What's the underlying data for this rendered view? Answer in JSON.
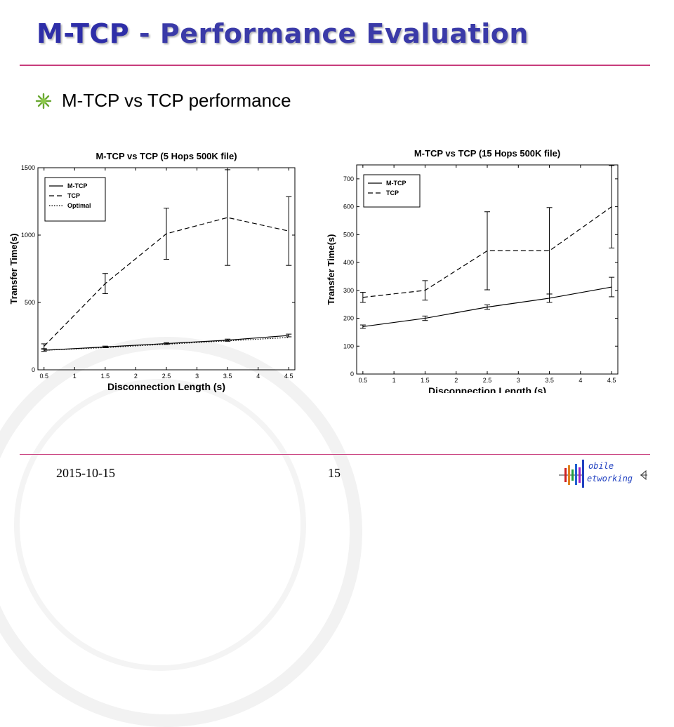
{
  "slide": {
    "title_part1": "M-TCP",
    "title_part2": " - Performance Evaluation",
    "bullet": "M-TCP vs TCP performance",
    "footer_date": "2015-10-15",
    "footer_page": "15",
    "logo_top": "obile",
    "logo_bottom": "etworking",
    "colors": {
      "title": "#2e2ea8",
      "rule": "#c83c7c",
      "bullet": "#6aa832",
      "logo": "#2040c0"
    },
    "icons": [
      "bullet-burst-icon",
      "mobile-networking-logo-icon"
    ]
  },
  "chart_data": [
    {
      "type": "line",
      "title": "M-TCP vs TCP (5 Hops 500K file)",
      "xlabel": "Disconnection Length (s)",
      "ylabel": "Transfer Time(s)",
      "xlim": [
        0.4,
        4.6
      ],
      "ylim": [
        0,
        1500
      ],
      "xticks": [
        0.5,
        1,
        1.5,
        2,
        2.5,
        3,
        3.5,
        4,
        4.5
      ],
      "xtick_labels": [
        "0.5",
        "1",
        "1.5",
        "2",
        "2.5",
        "3",
        "3.5",
        "4",
        "4.5"
      ],
      "yticks": [
        0,
        500,
        1000,
        1500
      ],
      "ytick_labels": [
        "0",
        "500",
        "1000",
        "1500"
      ],
      "legend_position": "top-left",
      "grid": false,
      "series": [
        {
          "name": "M-TCP",
          "dash": "solid",
          "x": [
            0.5,
            1.5,
            2.5,
            3.5,
            4.5
          ],
          "y": [
            145,
            170,
            195,
            220,
            255
          ],
          "err": [
            8,
            6,
            6,
            8,
            10
          ]
        },
        {
          "name": "TCP",
          "dash": "dashed",
          "x": [
            0.5,
            1.5,
            2.5,
            3.5,
            4.5
          ],
          "y": [
            175,
            640,
            1010,
            1130,
            1030
          ],
          "err": [
            18,
            75,
            190,
            355,
            255
          ]
        },
        {
          "name": "Optimal",
          "dash": "dotted",
          "x": [
            0.5,
            1.5,
            2.5,
            3.5,
            4.5
          ],
          "y": [
            145,
            165,
            190,
            215,
            240
          ],
          "err": []
        }
      ]
    },
    {
      "type": "line",
      "title": "M-TCP vs TCP (15 Hops 500K file)",
      "xlabel": "Disconnection Length (s)",
      "ylabel": "Transfer Time(s)",
      "xlim": [
        0.4,
        4.6
      ],
      "ylim": [
        0,
        750
      ],
      "xticks": [
        0.5,
        1,
        1.5,
        2,
        2.5,
        3,
        3.5,
        4,
        4.5
      ],
      "xtick_labels": [
        "0.5",
        "1",
        "1.5",
        "2",
        "2.5",
        "3",
        "3.5",
        "4",
        "4.5"
      ],
      "yticks": [
        0,
        100,
        200,
        300,
        400,
        500,
        600,
        700
      ],
      "ytick_labels": [
        "0",
        "100",
        "200",
        "300",
        "400",
        "500",
        "600",
        "700"
      ],
      "legend_position": "top-left",
      "grid": false,
      "series": [
        {
          "name": "M-TCP",
          "dash": "solid",
          "x": [
            0.5,
            1.5,
            2.5,
            3.5,
            4.5
          ],
          "y": [
            170,
            200,
            240,
            272,
            312
          ],
          "err": [
            6,
            8,
            8,
            15,
            35
          ]
        },
        {
          "name": "TCP",
          "dash": "dashed",
          "x": [
            0.5,
            1.5,
            2.5,
            3.5,
            4.5
          ],
          "y": [
            275,
            300,
            442,
            442,
            600
          ],
          "err": [
            18,
            35,
            140,
            155,
            148
          ]
        }
      ]
    }
  ]
}
